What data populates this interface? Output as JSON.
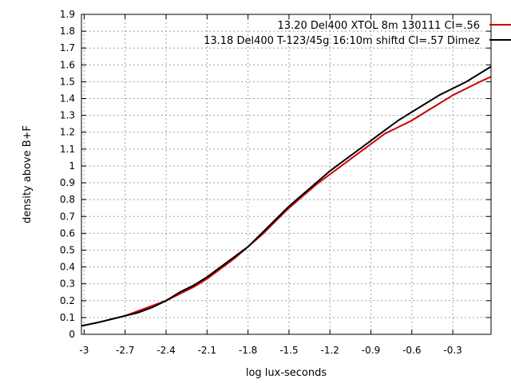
{
  "chart_data": {
    "type": "line",
    "title": "",
    "xlabel": "log lux-seconds",
    "ylabel": "density above B+F",
    "xlim": [
      -3.02,
      -0.02
    ],
    "ylim": [
      0,
      1.9
    ],
    "x_ticks": [
      "-3",
      "-2.7",
      "-2.4",
      "-2.1",
      "-1.8",
      "-1.5",
      "-1.2",
      "-0.9",
      "-0.6",
      "-0.3"
    ],
    "y_ticks": [
      "0",
      "0.1",
      "0.2",
      "0.3",
      "0.4",
      "0.5",
      "0.6",
      "0.7",
      "0.8",
      "0.9",
      "1",
      "1.1",
      "1.2",
      "1.3",
      "1.4",
      "1.5",
      "1.6",
      "1.7",
      "1.8",
      "1.9"
    ],
    "grid": true,
    "legend_position": "top-right",
    "series": [
      {
        "name": "13.20 Del400 XTOL 8m 130111 CI=.56",
        "color": "#cc0000",
        "x": [
          -3.02,
          -2.9,
          -2.8,
          -2.7,
          -2.6,
          -2.5,
          -2.4,
          -2.3,
          -2.2,
          -2.1,
          -2.0,
          -1.9,
          -1.8,
          -1.7,
          -1.6,
          -1.5,
          -1.4,
          -1.3,
          -1.2,
          -1.1,
          -1.0,
          -0.9,
          -0.8,
          -0.7,
          -0.6,
          -0.5,
          -0.4,
          -0.3,
          -0.2,
          -0.1,
          -0.02
        ],
        "y": [
          0.05,
          0.07,
          0.09,
          0.11,
          0.14,
          0.17,
          0.2,
          0.24,
          0.28,
          0.33,
          0.39,
          0.45,
          0.52,
          0.59,
          0.67,
          0.75,
          0.82,
          0.89,
          0.95,
          1.01,
          1.07,
          1.13,
          1.19,
          1.23,
          1.27,
          1.32,
          1.37,
          1.42,
          1.46,
          1.5,
          1.53
        ]
      },
      {
        "name": "13.18 Del400 T-123/45g 16:10m shiftd CI=.57 Dimez",
        "color": "#000000",
        "x": [
          -3.02,
          -2.9,
          -2.8,
          -2.7,
          -2.6,
          -2.5,
          -2.4,
          -2.3,
          -2.2,
          -2.1,
          -2.0,
          -1.9,
          -1.8,
          -1.7,
          -1.6,
          -1.5,
          -1.4,
          -1.3,
          -1.2,
          -1.1,
          -1.0,
          -0.9,
          -0.8,
          -0.7,
          -0.6,
          -0.5,
          -0.4,
          -0.3,
          -0.2,
          -0.1,
          -0.02
        ],
        "y": [
          0.05,
          0.07,
          0.09,
          0.11,
          0.13,
          0.16,
          0.2,
          0.25,
          0.29,
          0.34,
          0.4,
          0.46,
          0.52,
          0.6,
          0.68,
          0.76,
          0.83,
          0.9,
          0.97,
          1.03,
          1.09,
          1.15,
          1.21,
          1.27,
          1.32,
          1.37,
          1.42,
          1.46,
          1.5,
          1.55,
          1.59
        ]
      }
    ]
  }
}
